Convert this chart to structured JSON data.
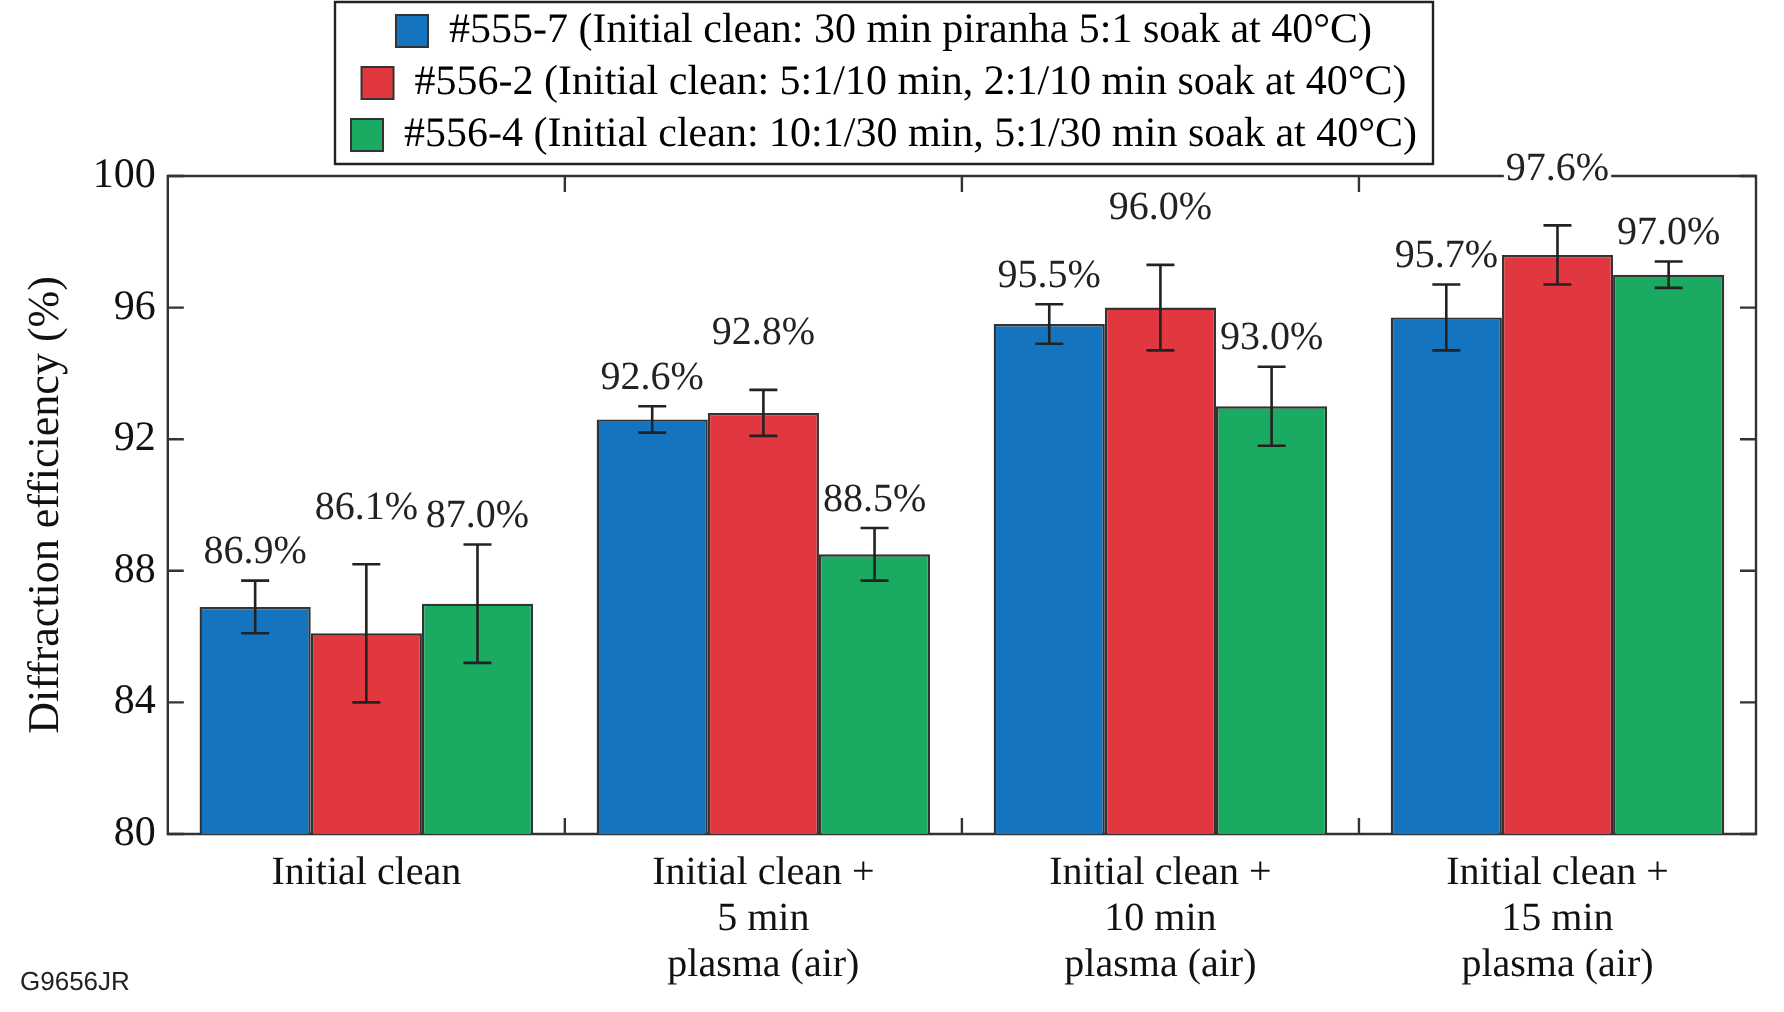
{
  "chart_data": {
    "type": "bar",
    "ylabel": "Diffraction efficiency (%)",
    "categories": [
      "Initial clean",
      "Initial clean +\n5 min\nplasma (air)",
      "Initial clean +\n10 min\nplasma (air)",
      "Initial clean +\n15 min\nplasma (air)"
    ],
    "series": [
      {
        "name": "#555-7 (Initial clean: 30 min piranha 5:1 soak at 40°C)",
        "color": "#1474bf",
        "values": [
          86.9,
          92.6,
          95.5,
          95.7
        ],
        "errors": [
          0.8,
          0.4,
          0.6,
          1.0
        ],
        "value_labels": [
          "86.9%",
          "92.6%",
          "95.5%",
          "95.7%"
        ]
      },
      {
        "name": "#556-2 (Initial clean: 5:1/10 min, 2:1/10 min soak at 40°C)",
        "color": "#e0383e",
        "values": [
          86.1,
          92.8,
          96.0,
          97.6
        ],
        "errors": [
          2.1,
          0.7,
          1.3,
          0.9
        ],
        "value_labels": [
          "86.1%",
          "92.8%",
          "96.0%",
          "97.6%"
        ]
      },
      {
        "name": "#556-4 (Initial clean: 10:1/30 min, 5:1/30 min soak at 40°C)",
        "color": "#1aaa62",
        "values": [
          87.0,
          88.5,
          93.0,
          97.0
        ],
        "errors": [
          1.8,
          0.8,
          1.2,
          0.4
        ],
        "value_labels": [
          "87.0%",
          "88.5%",
          "93.0%",
          "97.0%"
        ]
      }
    ],
    "ylim": [
      80,
      100
    ],
    "yticks": [
      80,
      84,
      88,
      92,
      96,
      100
    ],
    "grid": false,
    "legend": "top",
    "annotations": [
      "G9656JR"
    ]
  }
}
